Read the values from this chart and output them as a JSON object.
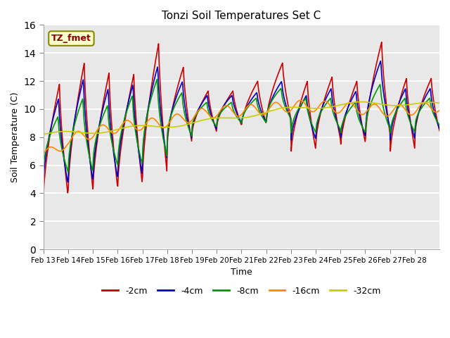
{
  "title": "Tonzi Soil Temperatures Set C",
  "xlabel": "Time",
  "ylabel": "Soil Temperature (C)",
  "annotation": "TZ_fmet",
  "ylim": [
    0,
    16
  ],
  "yticks": [
    0,
    2,
    4,
    6,
    8,
    10,
    12,
    14,
    16
  ],
  "xtick_labels": [
    "Feb 13",
    "Feb 14",
    "Feb 15",
    "Feb 16",
    "Feb 17",
    "Feb 18",
    "Feb 19",
    "Feb 20",
    "Feb 21",
    "Feb 22",
    "Feb 23",
    "Feb 24",
    "Feb 25",
    "Feb 26",
    "Feb 27",
    "Feb 28"
  ],
  "series_colors": [
    "#cc0000",
    "#0000cc",
    "#009900",
    "#ff8800",
    "#cccc00"
  ],
  "series_labels": [
    "-2cm",
    "-4cm",
    "-8cm",
    "-16cm",
    "-32cm"
  ],
  "bg_color": "#e8e8e8",
  "grid_color": "#ffffff",
  "annotation_bg": "#ffffcc",
  "annotation_text_color": "#880000",
  "annotation_border_color": "#888800"
}
